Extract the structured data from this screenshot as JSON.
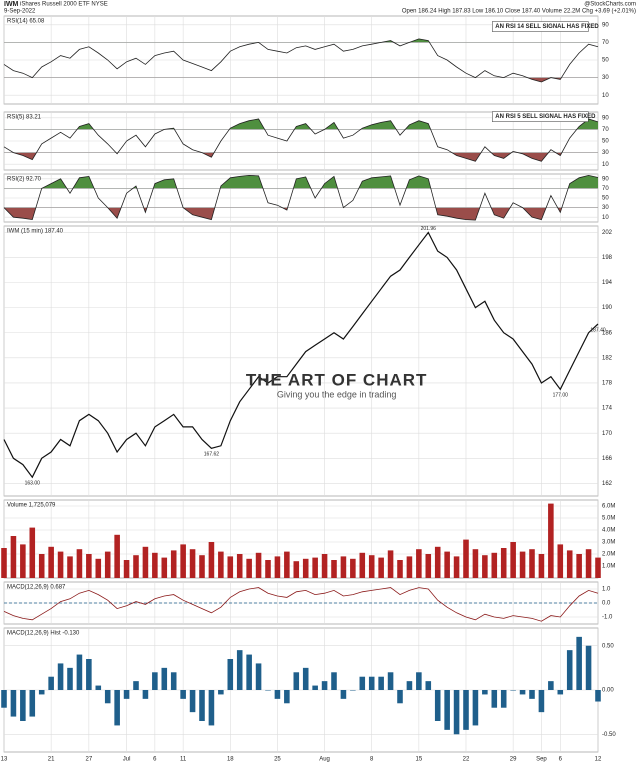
{
  "header": {
    "symbol": "IWM",
    "name": "iShares Russell 2000 ETF NYSE",
    "date": "9-Sep-2022",
    "quote": "Open 186.24 High 187.83 Low 186.10 Close 187.40 Volume 22.2M Chg +3.69 (+2.01%)",
    "source": "@StockCharts.com"
  },
  "chart_data": [
    {
      "type": "line",
      "label": "RSI(14) 65.08",
      "color": "#222",
      "ylim": [
        0,
        100
      ],
      "yticks": [
        10,
        30,
        50,
        70,
        90
      ],
      "overbought": 70,
      "oversold": 30,
      "values": [
        45,
        38,
        35,
        30,
        42,
        48,
        55,
        52,
        62,
        65,
        58,
        50,
        40,
        48,
        52,
        45,
        55,
        58,
        60,
        50,
        46,
        42,
        38,
        48,
        60,
        65,
        68,
        70,
        62,
        60,
        58,
        64,
        66,
        62,
        65,
        68,
        60,
        62,
        66,
        68,
        70,
        72,
        66,
        70,
        74,
        72,
        55,
        50,
        42,
        35,
        30,
        38,
        32,
        30,
        35,
        32,
        28,
        25,
        30,
        28,
        45,
        58,
        68,
        65
      ],
      "annotations": [
        {
          "text": "AN RSI 14 SELL SIGNAL HAS FIXED",
          "x": 52,
          "y": 88
        }
      ]
    },
    {
      "type": "line",
      "label": "RSI(5) 83.21",
      "color": "#222",
      "ylim": [
        0,
        100
      ],
      "yticks": [
        10,
        30,
        50,
        70,
        90
      ],
      "overbought": 70,
      "oversold": 30,
      "values": [
        40,
        30,
        25,
        18,
        45,
        55,
        65,
        55,
        75,
        80,
        60,
        45,
        28,
        50,
        60,
        40,
        62,
        70,
        72,
        45,
        35,
        30,
        22,
        50,
        72,
        80,
        85,
        88,
        60,
        55,
        50,
        75,
        80,
        62,
        70,
        82,
        55,
        60,
        72,
        78,
        82,
        85,
        60,
        78,
        85,
        80,
        40,
        35,
        25,
        20,
        15,
        40,
        25,
        20,
        32,
        28,
        20,
        15,
        35,
        25,
        55,
        75,
        88,
        83
      ],
      "annotations": [
        {
          "text": "AN RSI 5 SELL SIGNAL HAS FIXED",
          "x": 52,
          "y": 92
        }
      ]
    },
    {
      "type": "line",
      "label": "RSI(2) 92.70",
      "color": "#222",
      "ylim": [
        0,
        100
      ],
      "yticks": [
        10,
        30,
        50,
        70,
        90
      ],
      "overbought": 70,
      "oversold": 30,
      "values": [
        30,
        10,
        8,
        5,
        70,
        80,
        90,
        60,
        92,
        95,
        50,
        30,
        8,
        60,
        75,
        20,
        80,
        88,
        90,
        30,
        15,
        10,
        5,
        75,
        92,
        95,
        97,
        96,
        40,
        35,
        25,
        90,
        94,
        50,
        80,
        95,
        30,
        45,
        85,
        92,
        94,
        96,
        35,
        88,
        96,
        90,
        15,
        12,
        8,
        5,
        4,
        60,
        15,
        8,
        40,
        30,
        10,
        5,
        55,
        20,
        80,
        92,
        97,
        92.7
      ]
    },
    {
      "type": "line",
      "label": "IWM (15 min) 187.40",
      "color": "#111",
      "ylim": [
        160,
        203
      ],
      "yticks": [
        162,
        166,
        170,
        174,
        178,
        182,
        186,
        190,
        194,
        198,
        202
      ],
      "xlim": [
        0,
        63
      ],
      "xticks": [
        {
          "value": 0,
          "label": "13"
        },
        {
          "value": 5,
          "label": "21"
        },
        {
          "value": 9,
          "label": "27"
        },
        {
          "value": 13,
          "label": "Jul"
        },
        {
          "value": 16,
          "label": "6"
        },
        {
          "value": 19,
          "label": "11"
        },
        {
          "value": 24,
          "label": "18"
        },
        {
          "value": 29,
          "label": "25"
        },
        {
          "value": 34,
          "label": "Aug"
        },
        {
          "value": 39,
          "label": "8"
        },
        {
          "value": 44,
          "label": "15"
        },
        {
          "value": 49,
          "label": "22"
        },
        {
          "value": 54,
          "label": "29"
        },
        {
          "value": 57,
          "label": "Sep"
        },
        {
          "value": 59,
          "label": "6"
        },
        {
          "value": 63,
          "label": "12"
        }
      ],
      "values": [
        169,
        166,
        165,
        163,
        166,
        167,
        169,
        168,
        172,
        173,
        172,
        170,
        167,
        169,
        170,
        168,
        171,
        172,
        173,
        171,
        171,
        169,
        167.6,
        168,
        172,
        175,
        177,
        179,
        178,
        179,
        179,
        181,
        183,
        184,
        185,
        186,
        185,
        187,
        189,
        191,
        193,
        195,
        196,
        198,
        200,
        201.96,
        199,
        198,
        196,
        193,
        190,
        191,
        188,
        186,
        185,
        183,
        181,
        178,
        179,
        177,
        180,
        183,
        186,
        187.4
      ],
      "annotations": [
        {
          "text": "201.96",
          "x": 45,
          "y": 201.96
        },
        {
          "text": "187.40",
          "x": 63,
          "y": 187.4
        },
        {
          "text": "163.00",
          "x": 3,
          "y": 163
        },
        {
          "text": "167.62",
          "x": 22,
          "y": 167.6
        },
        {
          "text": "177.00",
          "x": 59,
          "y": 177
        }
      ],
      "watermark": {
        "title": "THE ART OF CHART",
        "subtitle": "Giving you the edge in trading"
      }
    },
    {
      "type": "bar",
      "label": "Volume 1,725,079",
      "color": "#b22222",
      "ylim": [
        0,
        6.5
      ],
      "yticks": [
        {
          "value": 1,
          "label": "1.0M"
        },
        {
          "value": 2,
          "label": "2.0M"
        },
        {
          "value": 3,
          "label": "3.0M"
        },
        {
          "value": 4,
          "label": "4.0M"
        },
        {
          "value": 5,
          "label": "5.0M"
        },
        {
          "value": 6,
          "label": "6.0M"
        }
      ],
      "values": [
        2.5,
        3.5,
        2.8,
        4.2,
        2.0,
        2.6,
        2.2,
        1.8,
        2.4,
        2.0,
        1.6,
        2.2,
        3.6,
        1.5,
        1.9,
        2.6,
        2.1,
        1.7,
        2.3,
        2.8,
        2.4,
        1.9,
        3.0,
        2.2,
        1.8,
        2.0,
        1.6,
        2.1,
        1.5,
        1.8,
        2.2,
        1.4,
        1.6,
        1.7,
        2.0,
        1.5,
        1.8,
        1.6,
        2.1,
        1.9,
        1.7,
        2.3,
        1.5,
        1.8,
        2.4,
        2.0,
        2.6,
        2.2,
        1.8,
        3.2,
        2.4,
        1.9,
        2.1,
        2.5,
        3.0,
        2.2,
        2.4,
        2.0,
        6.2,
        2.8,
        2.3,
        2.0,
        2.4,
        1.7
      ]
    },
    {
      "type": "line",
      "label": "MACD(12,26,9) 0.687",
      "color": "#8b1a1a",
      "ylim": [
        -1.5,
        1.5
      ],
      "yticks": [
        {
          "value": -1,
          "label": "-1.0"
        },
        {
          "value": 0,
          "label": "0.0"
        },
        {
          "value": 1,
          "label": "1.0"
        }
      ],
      "values": [
        -0.6,
        -0.9,
        -1.1,
        -1.2,
        -0.8,
        -0.4,
        0.1,
        0.3,
        0.7,
        0.9,
        0.6,
        0.2,
        -0.4,
        -0.2,
        0.1,
        -0.1,
        0.3,
        0.5,
        0.6,
        0.2,
        -0.1,
        -0.4,
        -0.7,
        -0.3,
        0.4,
        0.8,
        1.0,
        1.1,
        0.7,
        0.5,
        0.4,
        0.8,
        0.9,
        0.6,
        0.7,
        0.9,
        0.5,
        0.6,
        0.8,
        0.9,
        1.0,
        1.1,
        0.6,
        0.9,
        1.1,
        1.0,
        0.2,
        -0.3,
        -0.7,
        -1.0,
        -1.2,
        -0.8,
        -1.0,
        -1.1,
        -0.9,
        -1.0,
        -1.1,
        -1.3,
        -0.9,
        -1.0,
        -0.2,
        0.5,
        0.9,
        0.69
      ]
    },
    {
      "type": "bar",
      "label": "MACD(12,26,9) Hist -0.130",
      "color": "#1f5f8b",
      "ylim": [
        -0.7,
        0.7
      ],
      "yticks": [
        {
          "value": -0.5,
          "label": "-0.50"
        },
        {
          "value": 0,
          "label": "0.00"
        },
        {
          "value": 0.5,
          "label": "0.50"
        }
      ],
      "values": [
        -0.2,
        -0.3,
        -0.35,
        -0.3,
        -0.05,
        0.15,
        0.3,
        0.25,
        0.4,
        0.35,
        0.05,
        -0.15,
        -0.4,
        -0.1,
        0.1,
        -0.1,
        0.2,
        0.25,
        0.2,
        -0.1,
        -0.25,
        -0.35,
        -0.4,
        -0.05,
        0.35,
        0.45,
        0.4,
        0.3,
        0.0,
        -0.1,
        -0.15,
        0.2,
        0.25,
        0.05,
        0.1,
        0.2,
        -0.1,
        0.0,
        0.15,
        0.15,
        0.15,
        0.2,
        -0.15,
        0.1,
        0.2,
        0.1,
        -0.35,
        -0.45,
        -0.5,
        -0.45,
        -0.4,
        -0.05,
        -0.2,
        -0.2,
        0.0,
        -0.05,
        -0.1,
        -0.25,
        0.1,
        -0.05,
        0.45,
        0.6,
        0.5,
        -0.13
      ]
    }
  ]
}
